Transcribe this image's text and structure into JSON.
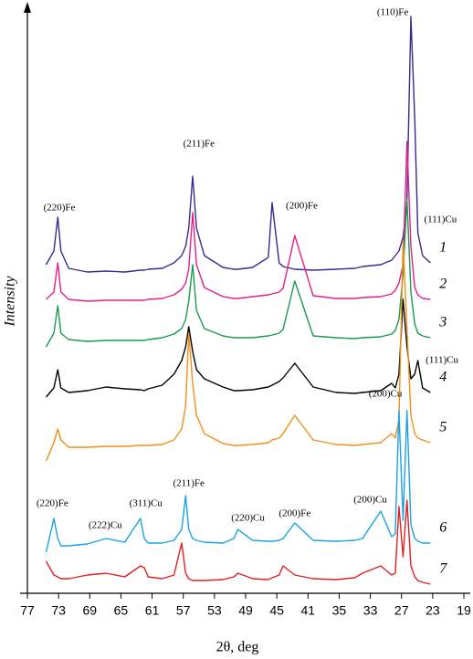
{
  "chart_data": {
    "type": "line",
    "xlabel": "2θ, deg",
    "ylabel": "Intensity",
    "xlim": [
      77,
      19
    ],
    "xticks": [
      77,
      73,
      69,
      65,
      61,
      57,
      53,
      49,
      45,
      41,
      35,
      33,
      27,
      23,
      19
    ],
    "x": [
      74.6,
      73.6,
      73.1,
      72.7,
      71.7,
      69.3,
      66.9,
      64.5,
      62.5,
      62.0,
      61.5,
      59.7,
      58.2,
      57.2,
      56.7,
      56.3,
      55.8,
      55.3,
      54.3,
      51.9,
      50.5,
      50.0,
      48.1,
      46.1,
      45.6,
      44.7,
      44.2,
      42.7,
      40.0,
      35.6,
      34.0,
      33.5,
      31.0,
      28.9,
      28.2,
      27.5,
      26.8,
      26.3,
      25.8,
      25.3,
      24.9,
      24.3,
      23.3
    ],
    "series": [
      {
        "name": "1",
        "color": "#3b2a8e",
        "values": [
          360,
          375,
          412,
          375,
          356,
          352,
          353,
          352,
          354,
          354,
          355,
          356,
          362,
          370,
          380,
          400,
          457,
          400,
          370,
          357,
          355,
          355,
          357,
          368,
          428,
          362,
          358,
          355,
          354,
          355,
          356,
          358,
          360,
          365,
          370,
          375,
          390,
          430,
          632,
          520,
          395,
          370,
          362
        ]
      },
      {
        "name": "2",
        "color": "#e0218c",
        "values": [
          322,
          330,
          362,
          330,
          322,
          320,
          321,
          321,
          321,
          321,
          322,
          323,
          327,
          333,
          340,
          355,
          417,
          360,
          335,
          325,
          323,
          323,
          325,
          327,
          328,
          330,
          334,
          392,
          326,
          323,
          323,
          324,
          325,
          328,
          332,
          340,
          360,
          495,
          380,
          335,
          327,
          323,
          322
        ]
      },
      {
        "name": "3",
        "color": "#1a9a50",
        "values": [
          270,
          285,
          315,
          285,
          278,
          276,
          277,
          277,
          277,
          277,
          278,
          280,
          284,
          290,
          300,
          320,
          360,
          310,
          290,
          282,
          280,
          280,
          280,
          282,
          283,
          285,
          289,
          342,
          282,
          280,
          279,
          280,
          281,
          284,
          288,
          300,
          350,
          432,
          330,
          295,
          285,
          282,
          280
        ]
      },
      {
        "name": "4",
        "color": "#000000",
        "values": [
          215,
          225,
          245,
          225,
          220,
          222,
          226,
          224,
          223,
          222,
          224,
          228,
          240,
          255,
          270,
          292,
          265,
          245,
          235,
          226,
          222,
          222,
          223,
          226,
          228,
          232,
          236,
          252,
          226,
          220,
          219,
          220,
          222,
          230,
          225,
          240,
          322,
          270,
          235,
          240,
          255,
          225,
          220
        ]
      },
      {
        "name": "5",
        "color": "#f0901a",
        "values": [
          145,
          165,
          180,
          168,
          160,
          160,
          161,
          161,
          162,
          162,
          162,
          163,
          168,
          180,
          205,
          285,
          230,
          195,
          175,
          164,
          162,
          162,
          163,
          165,
          168,
          170,
          175,
          195,
          168,
          163,
          162,
          163,
          165,
          175,
          170,
          190,
          385,
          290,
          195,
          175,
          170,
          168,
          165
        ]
      },
      {
        "name": "6",
        "color": "#1aa3e0",
        "values": [
          45,
          82,
          60,
          52,
          52,
          54,
          60,
          56,
          82,
          60,
          55,
          55,
          58,
          70,
          107,
          70,
          60,
          58,
          56,
          55,
          60,
          70,
          58,
          57,
          57,
          58,
          60,
          77,
          58,
          57,
          58,
          60,
          90,
          62,
          65,
          200,
          80,
          200,
          75,
          60,
          57,
          55,
          55
        ]
      },
      {
        "name": "7",
        "color": "#e02020",
        "values": [
          35,
          20,
          18,
          16,
          16,
          20,
          22,
          18,
          30,
          28,
          18,
          16,
          20,
          55,
          22,
          16,
          14,
          14,
          14,
          15,
          18,
          22,
          16,
          15,
          17,
          20,
          30,
          20,
          16,
          15,
          17,
          22,
          30,
          20,
          22,
          95,
          40,
          102,
          30,
          18,
          14,
          12,
          10
        ]
      }
    ],
    "annotations": [
      {
        "text": "(110)Fe",
        "x": 28.7,
        "y": 636
      },
      {
        "text": "(211)Fe",
        "x": 55.0,
        "y": 492
      },
      {
        "text": "(220)Fe",
        "x": 72.9,
        "y": 422
      },
      {
        "text": "(200)Fe",
        "x": 41.8,
        "y": 424
      },
      {
        "text": "(111)Cu",
        "x": 22.0,
        "y": 409
      },
      {
        "text": "(200)Cu",
        "x": 30.1,
        "y": 218
      },
      {
        "text": "(111)Cu",
        "x": 21.8,
        "y": 255
      },
      {
        "text": "(220)Fe",
        "x": 73.8,
        "y": 98
      },
      {
        "text": "(222)Cu",
        "x": 67.0,
        "y": 74
      },
      {
        "text": "(311)Cu",
        "x": 61.8,
        "y": 98
      },
      {
        "text": "(211)Fe",
        "x": 56.3,
        "y": 120
      },
      {
        "text": "(220)Cu",
        "x": 48.7,
        "y": 82
      },
      {
        "text": "(200)Fe",
        "x": 42.7,
        "y": 87
      },
      {
        "text": "(200)Cu",
        "x": 33.0,
        "y": 102
      }
    ]
  }
}
